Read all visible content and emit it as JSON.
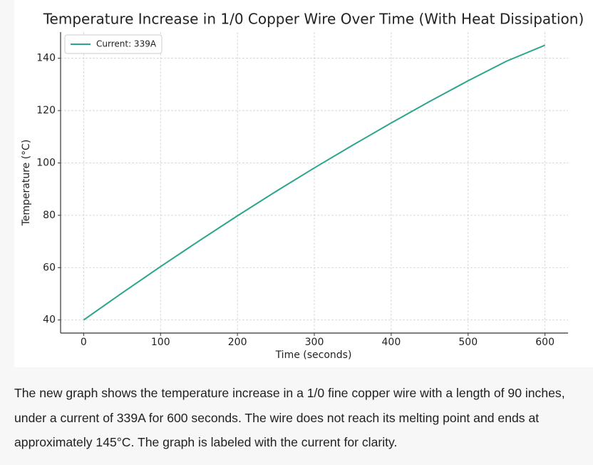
{
  "chart_data": {
    "type": "line",
    "title": "Temperature Increase in 1/0 Copper Wire Over Time (With Heat Dissipation)",
    "x_label": "Time (seconds)",
    "y_label": "Temperature (°C)",
    "x": [
      0,
      50,
      100,
      150,
      200,
      250,
      300,
      350,
      400,
      450,
      500,
      550,
      600
    ],
    "series": [
      {
        "name": "Current: 339A",
        "color": "#2ca58d",
        "values": [
          40,
          50.3,
          60.4,
          70.2,
          79.8,
          89.1,
          98.1,
          106.8,
          115.3,
          123.5,
          131.4,
          138.9,
          145
        ]
      }
    ],
    "xlim": [
      -30,
      630
    ],
    "ylim": [
      35,
      150
    ],
    "xticks": [
      0,
      100,
      200,
      300,
      400,
      500,
      600
    ],
    "yticks": [
      40,
      60,
      80,
      100,
      120,
      140
    ],
    "grid": true,
    "legend": "upper left"
  },
  "message": {
    "text": "The new graph shows the temperature increase in a 1/0 fine copper wire with a length of 90 inches, under a current of 339A for 600 seconds. The wire does not reach its melting point and ends at approximately 145°C. The graph is labeled with the current for clarity."
  }
}
